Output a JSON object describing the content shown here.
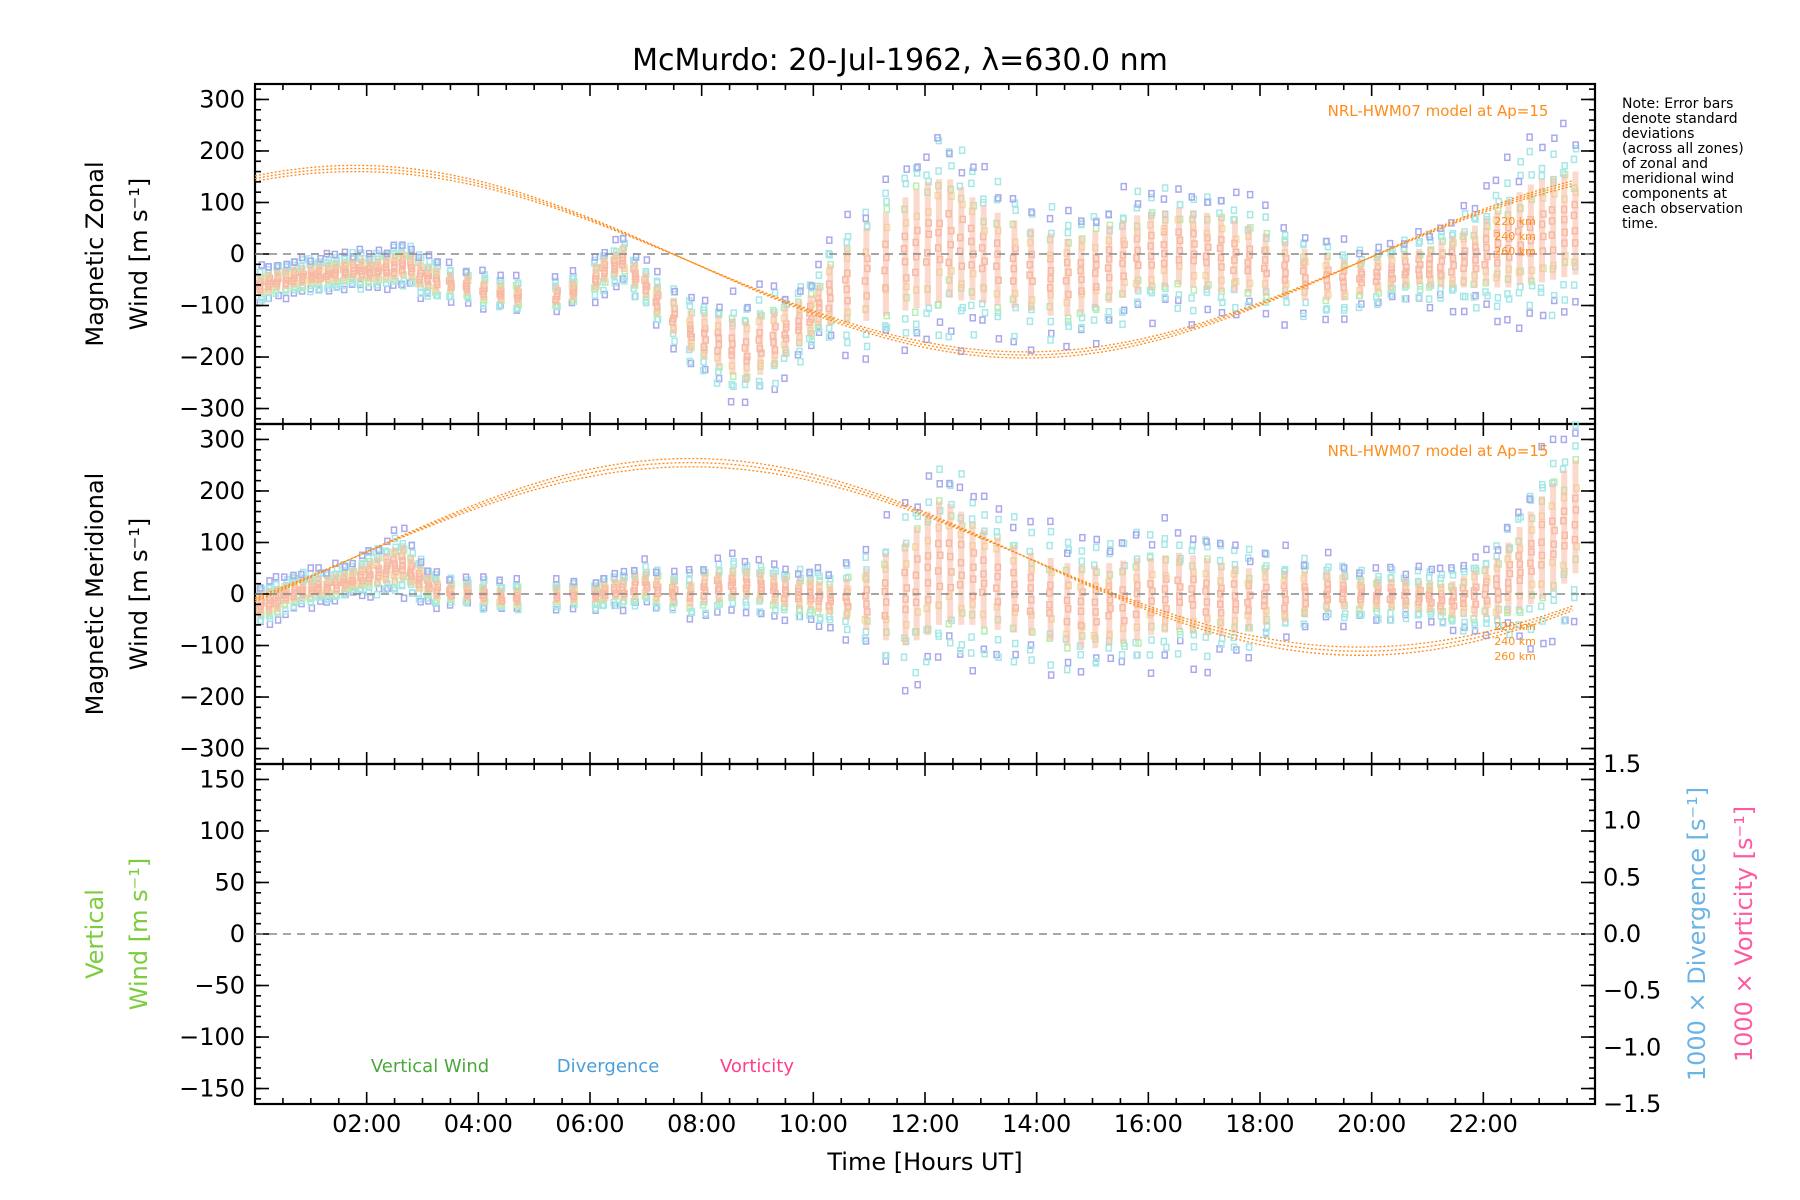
{
  "colors": {
    "model": "#ff8c1a",
    "vertical": "#7ccd3c",
    "divergence": "#6ab4e6",
    "vorticity": "#ff5aa0",
    "zero_line": "#888888",
    "scatter": [
      "#a9a9ee",
      "#a6e8e8",
      "#b8efb0",
      "#f2e3a6",
      "#f7b9a4"
    ]
  },
  "chart_data": {
    "title": "McMurdo: 20-Jul-1962, λ=630.0 nm",
    "type": "scatter",
    "x_axis": {
      "label": "Time [Hours UT]",
      "range_hours": [
        0,
        24
      ],
      "tick_labels": [
        "02:00",
        "04:00",
        "06:00",
        "08:00",
        "10:00",
        "12:00",
        "14:00",
        "16:00",
        "18:00",
        "20:00",
        "22:00"
      ],
      "tick_hours": [
        2,
        4,
        6,
        8,
        10,
        12,
        14,
        16,
        18,
        20,
        22
      ]
    },
    "note": [
      "Note: Error bars",
      "denote standard",
      "deviations",
      "(across all zones)",
      "of zonal and",
      "meridional wind",
      "components at",
      "each observation",
      "time."
    ],
    "panels": [
      {
        "name": "zonal",
        "ylabel_line1": "Magnetic Zonal",
        "ylabel_line2": "Wind [m s⁻¹]",
        "ylim": [
          -330,
          330
        ],
        "yticks": [
          300,
          200,
          100,
          0,
          -100,
          -200,
          -300
        ],
        "ytick_labels": [
          "300",
          "200",
          "100",
          "0",
          "−100",
          "−200",
          "−300"
        ],
        "model_label": "NRL-HWM07 model at Ap=15",
        "altitudes": [
          "220 km",
          "240 km",
          "260 km"
        ],
        "model_curves": {
          "description_free": true,
          "amplitude": 175,
          "offset": -15,
          "peak_hour": 1.8,
          "altitude_shift": [
            0,
            6,
            12
          ]
        },
        "observations": {
          "zero_line": true
        }
      },
      {
        "name": "meridional",
        "ylabel_line1": "Magnetic Meridional",
        "ylabel_line2": "Wind [m s⁻¹]",
        "ylim": [
          -330,
          330
        ],
        "yticks": [
          300,
          200,
          100,
          0,
          -100,
          -200,
          -300
        ],
        "ytick_labels": [
          "300",
          "200",
          "100",
          "0",
          "−100",
          "−200",
          "−300"
        ],
        "model_label": "NRL-HWM07 model at Ap=15",
        "altitudes": [
          "220 km",
          "240 km",
          "260 km"
        ],
        "model_curves": {
          "amplitude": 175,
          "offset": 72,
          "peak_hour": 7.8,
          "altitude_shift": [
            0,
            8,
            16
          ]
        }
      },
      {
        "name": "vertical",
        "ylabel_line1": "Vertical",
        "ylabel_line2": "Wind [m s⁻¹]",
        "ylim": [
          -165,
          165
        ],
        "yticks": [
          150,
          100,
          50,
          0,
          -50,
          -100,
          -150
        ],
        "ytick_labels": [
          "150",
          "100",
          "50",
          "0",
          "−50",
          "−100",
          "−150"
        ],
        "right_ylim": [
          -1.5,
          1.5
        ],
        "right_yticks": [
          1.5,
          1.0,
          0.5,
          0.0,
          -0.5,
          -1.0,
          -1.5
        ],
        "right_ytick_labels": [
          "1.5",
          "1.0",
          "0.5",
          "0.0",
          "−0.5",
          "−1.0",
          "−1.5"
        ],
        "right_label_divergence": "1000 × Divergence [s⁻¹]",
        "right_label_vorticity": "1000 × Vorticity [s⁻¹]",
        "legend": [
          "Vertical Wind",
          "Divergence",
          "Vorticity"
        ]
      }
    ],
    "observation_times_hours": [
      0.1,
      0.25,
      0.4,
      0.55,
      0.7,
      0.85,
      1.0,
      1.15,
      1.3,
      1.45,
      1.6,
      1.75,
      1.9,
      2.05,
      2.2,
      2.35,
      2.5,
      2.65,
      2.8,
      2.95,
      3.1,
      3.25,
      3.5,
      3.8,
      4.1,
      4.4,
      4.7,
      5.4,
      5.7,
      6.1,
      6.25,
      6.45,
      6.6,
      6.8,
      7.0,
      7.2,
      7.5,
      7.8,
      8.05,
      8.3,
      8.55,
      8.8,
      9.05,
      9.3,
      9.5,
      9.75,
      9.95,
      10.1,
      10.3,
      10.6,
      10.95,
      11.3,
      11.65,
      11.85,
      12.05,
      12.25,
      12.45,
      12.65,
      12.85,
      13.05,
      13.3,
      13.6,
      13.9,
      14.25,
      14.55,
      14.8,
      15.05,
      15.3,
      15.55,
      15.8,
      16.05,
      16.3,
      16.55,
      16.8,
      17.05,
      17.3,
      17.55,
      17.8,
      18.1,
      18.45,
      18.8,
      19.2,
      19.5,
      19.8,
      20.1,
      20.35,
      20.6,
      20.85,
      21.05,
      21.25,
      21.45,
      21.65,
      21.85,
      22.05,
      22.25,
      22.45,
      22.65,
      22.85,
      23.05,
      23.25,
      23.45,
      23.65
    ],
    "zonal_centers": [
      -60,
      -55,
      -50,
      -48,
      -45,
      -42,
      -40,
      -38,
      -36,
      -34,
      -32,
      -30,
      -30,
      -32,
      -30,
      -28,
      -25,
      -20,
      -25,
      -40,
      -45,
      -50,
      -55,
      -60,
      -70,
      -75,
      -80,
      -80,
      -70,
      -45,
      -30,
      -20,
      -10,
      -40,
      -60,
      -90,
      -120,
      -150,
      -160,
      -170,
      -180,
      -190,
      -175,
      -165,
      -150,
      -135,
      -120,
      -100,
      -80,
      -60,
      -40,
      -20,
      0,
      10,
      20,
      25,
      30,
      20,
      10,
      0,
      -10,
      -20,
      -30,
      -40,
      -45,
      -40,
      -30,
      -20,
      -10,
      0,
      5,
      10,
      15,
      10,
      5,
      0,
      -5,
      -10,
      -20,
      -30,
      -40,
      -45,
      -50,
      -45,
      -40,
      -35,
      -30,
      -25,
      -25,
      -20,
      -15,
      -10,
      -5,
      5,
      10,
      20,
      30,
      40,
      45,
      50,
      55,
      60
    ],
    "zonal_spreads": [
      40,
      40,
      40,
      40,
      40,
      40,
      40,
      40,
      40,
      40,
      40,
      40,
      45,
      45,
      45,
      45,
      50,
      50,
      50,
      50,
      45,
      45,
      40,
      40,
      40,
      40,
      40,
      40,
      40,
      50,
      50,
      50,
      50,
      50,
      50,
      60,
      70,
      80,
      90,
      100,
      110,
      120,
      120,
      110,
      100,
      90,
      80,
      80,
      120,
      150,
      180,
      200,
      220,
      230,
      240,
      240,
      230,
      220,
      200,
      190,
      180,
      170,
      160,
      160,
      150,
      150,
      150,
      150,
      150,
      150,
      150,
      150,
      150,
      150,
      150,
      150,
      140,
      130,
      120,
      110,
      100,
      90,
      80,
      70,
      70,
      70,
      70,
      70,
      80,
      90,
      100,
      110,
      120,
      130,
      150,
      170,
      180,
      190,
      200,
      200,
      200,
      200
    ],
    "meridional_centers": [
      -20,
      -15,
      -10,
      0,
      5,
      10,
      12,
      15,
      15,
      20,
      25,
      30,
      35,
      40,
      45,
      50,
      55,
      60,
      45,
      30,
      20,
      10,
      5,
      5,
      0,
      -5,
      -5,
      0,
      0,
      0,
      5,
      10,
      10,
      15,
      20,
      10,
      5,
      0,
      10,
      15,
      20,
      20,
      15,
      10,
      5,
      0,
      0,
      -5,
      -10,
      -10,
      -10,
      -5,
      0,
      20,
      40,
      60,
      60,
      50,
      40,
      30,
      20,
      10,
      0,
      -10,
      -20,
      -25,
      -25,
      -20,
      -15,
      -10,
      -5,
      0,
      5,
      0,
      -5,
      -10,
      -10,
      -10,
      -5,
      -5,
      0,
      5,
      5,
      0,
      0,
      0,
      0,
      -5,
      -5,
      -10,
      -10,
      -5,
      0,
      5,
      10,
      30,
      50,
      70,
      90,
      110,
      130,
      150
    ],
    "meridional_spreads": [
      50,
      50,
      50,
      40,
      40,
      40,
      40,
      40,
      40,
      40,
      40,
      40,
      45,
      50,
      55,
      60,
      70,
      70,
      60,
      50,
      40,
      40,
      35,
      35,
      35,
      35,
      35,
      35,
      35,
      35,
      40,
      40,
      45,
      50,
      50,
      50,
      50,
      50,
      60,
      60,
      60,
      60,
      60,
      60,
      60,
      60,
      60,
      60,
      60,
      80,
      120,
      170,
      200,
      220,
      240,
      240,
      230,
      220,
      200,
      190,
      180,
      170,
      160,
      160,
      160,
      160,
      160,
      160,
      160,
      160,
      150,
      150,
      150,
      150,
      150,
      140,
      130,
      120,
      110,
      100,
      90,
      80,
      70,
      60,
      60,
      60,
      60,
      60,
      60,
      60,
      70,
      80,
      90,
      100,
      120,
      140,
      160,
      180,
      200,
      210,
      220,
      220
    ]
  }
}
